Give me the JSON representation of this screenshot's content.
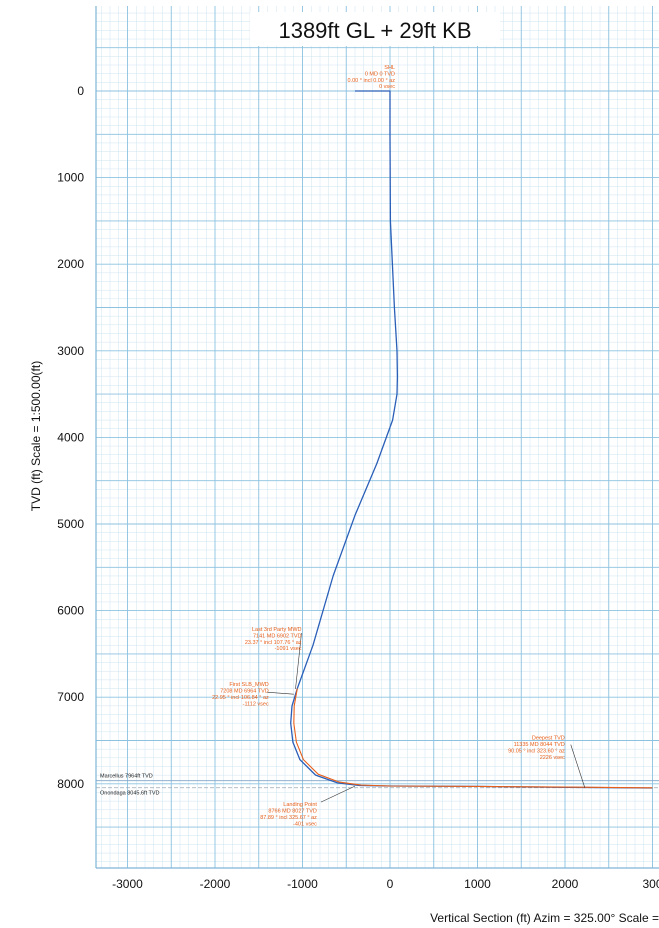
{
  "chart_data": {
    "type": "line",
    "title": "1389ft GL + 29ft KB",
    "xlabel": "Vertical Section (ft) Azim = 325.00° Scale =",
    "ylabel": "TVD (ft) Scale = 1:500.00(ft)",
    "xlim": [
      -3400,
      3100
    ],
    "ylim": [
      -1000,
      9200
    ],
    "y_inverted": true,
    "grid": true,
    "x_ticks": [
      "-3000",
      "-2000",
      "-1000",
      "0",
      "1000",
      "2000",
      "300"
    ],
    "y_ticks": [
      "0",
      "1000",
      "2000",
      "3000",
      "4000",
      "5000",
      "6000",
      "7000",
      "8000"
    ],
    "series": [
      {
        "color": "#2a5fb8",
        "x": [
          -400,
          0,
          0,
          5,
          50,
          80,
          85,
          80,
          30,
          -150,
          -400,
          -650,
          -880,
          -1060,
          -1120,
          -1135,
          -1110,
          -1030,
          -850,
          -600,
          -350,
          0,
          1000,
          2000,
          3000
        ],
        "y": [
          0,
          0,
          500,
          1500,
          2500,
          3000,
          3300,
          3500,
          3800,
          4300,
          4900,
          5600,
          6400,
          6900,
          7100,
          7300,
          7520,
          7720,
          7900,
          7990,
          8020,
          8025,
          8030,
          8040,
          8048
        ]
      },
      {
        "color": "#e8601a",
        "x": [
          -1060,
          -1095,
          -1100,
          -1070,
          -990,
          -820,
          -580,
          -330,
          0,
          1000,
          2000,
          3000
        ],
        "y": [
          6900,
          7100,
          7300,
          7520,
          7720,
          7890,
          7980,
          8015,
          8025,
          8030,
          8038,
          8046
        ]
      }
    ],
    "formations": [
      {
        "label": "Marcellus 7964ft TVD",
        "tvd": 7964
      },
      {
        "label": "Onondaga 8045.6ft TVD",
        "tvd": 8045.6
      }
    ],
    "annotations": [
      {
        "lines": [
          "SHL",
          "0 MD 0 TVD",
          "0.00 ° incl 0.00 ° az",
          "0 vsec"
        ],
        "point": [
          0,
          0
        ]
      },
      {
        "lines": [
          "Last 3rd Party MWD",
          "7141 MD 6902 TVD",
          "23.37 ° incl 107.76 ° az",
          "-1091 vsec"
        ],
        "point": [
          -1080,
          6905
        ]
      },
      {
        "lines": [
          "First SLB_MWD",
          "7208 MD 6964 TVD",
          "22.95 ° incl 106.84 ° az",
          "-1112 vsec"
        ],
        "point": [
          -1100,
          6965
        ]
      },
      {
        "lines": [
          "Deepest TVD",
          "11335 MD 8044 TVD",
          "90.05 ° incl 323.60 ° az",
          "2226 vsec"
        ],
        "point": [
          2226,
          8044
        ]
      },
      {
        "lines": [
          "Landing Point",
          "8766 MD 8027 TVD",
          "87.89 ° incl 325.67 ° az",
          "-401 vsec"
        ],
        "point": [
          -401,
          8027
        ]
      }
    ]
  }
}
